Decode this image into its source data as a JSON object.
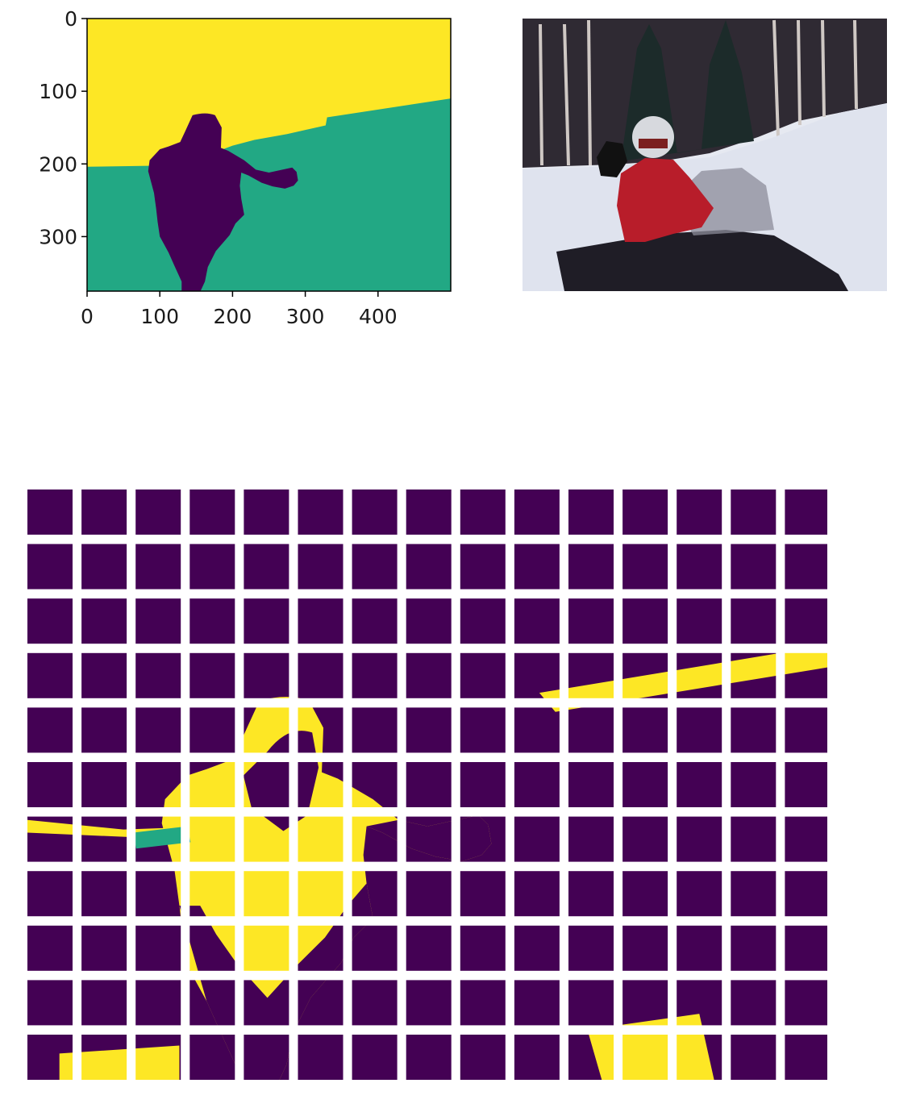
{
  "chart_data": [
    {
      "type": "heatmap",
      "title": "",
      "xlabel": "",
      "ylabel": "",
      "x_ticks": [
        "0",
        "100",
        "200",
        "300",
        "400"
      ],
      "y_ticks": [
        "0",
        "100",
        "200",
        "300"
      ],
      "xlim": [
        0,
        500
      ],
      "ylim": [
        375,
        0
      ],
      "colormap": "viridis",
      "class_colors": {
        "person": "#440154",
        "snow": "#22a884",
        "trees": "#fde725"
      },
      "grid": false
    },
    {
      "type": "image",
      "title": "",
      "content": "photo of a person in a red jacket and white helmet on a snowmobile waving, snowy slope with trees behind",
      "axes": "off"
    },
    {
      "type": "heatmap",
      "title": "",
      "grid_rows": 11,
      "grid_cols": 15,
      "axes": "off",
      "colormap": "viridis",
      "colors": {
        "background": "#440154",
        "foreground": "#fde725",
        "mid": "#22a884"
      }
    }
  ]
}
